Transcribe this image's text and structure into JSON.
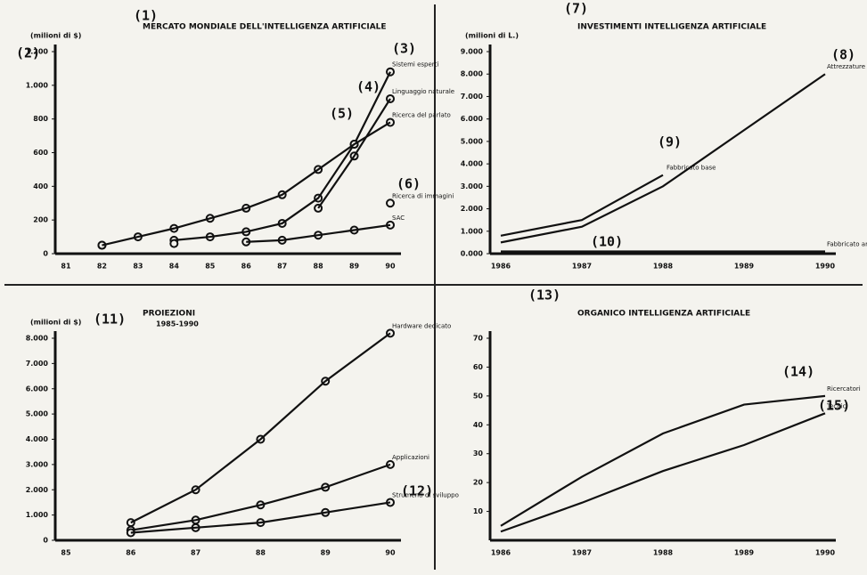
{
  "chart_data": [
    {
      "type": "line",
      "title": "MERCATO MONDIALE DELL'INTELLIGENZA ARTIFICIALE",
      "ylabel": "(milioni di $)",
      "categories": [
        "81",
        "82",
        "83",
        "84",
        "85",
        "86",
        "87",
        "88",
        "89",
        "90"
      ],
      "ylim": [
        0,
        1200
      ],
      "yticks": [
        0,
        200,
        400,
        600,
        800,
        {
          "value": 1000,
          "label": "1.000"
        },
        {
          "value": 1200,
          "label": "1.200"
        }
      ],
      "markers": true,
      "series": [
        {
          "name": "Sistemi esperti",
          "color": "#111",
          "values": [
            null,
            50,
            null,
            80,
            100,
            130,
            180,
            330,
            650,
            1080
          ]
        },
        {
          "name": "Linguaggio naturale",
          "color": "#111",
          "values": [
            null,
            null,
            null,
            null,
            null,
            null,
            null,
            270,
            580,
            920
          ]
        },
        {
          "name": "Ricerca del parlato",
          "color": "#111",
          "values": [
            null,
            50,
            100,
            150,
            210,
            270,
            350,
            500,
            650,
            780
          ]
        },
        {
          "name": "Ricerca di immagini",
          "color": "#111",
          "values": [
            null,
            null,
            null,
            null,
            null,
            null,
            null,
            null,
            null,
            300
          ]
        },
        {
          "name": "SAC",
          "color": "#111",
          "values": [
            null,
            null,
            null,
            60,
            null,
            70,
            80,
            110,
            140,
            170
          ]
        }
      ],
      "annotations": [
        "(1)",
        "(2)",
        "(3)",
        "(4)",
        "(5)",
        "(6)"
      ]
    },
    {
      "type": "line",
      "title": "INVESTIMENTI INTELLIGENZA ARTIFICIALE",
      "ylabel": "(milioni di L.)",
      "categories": [
        "1986",
        "1987",
        "1988",
        "1989",
        "1990"
      ],
      "ylim": [
        0,
        9000
      ],
      "yticks": [
        {
          "value": 0,
          "label": "0.000"
        },
        {
          "value": 1000,
          "label": "1.000"
        },
        {
          "value": 2000,
          "label": "2.000"
        },
        {
          "value": 3000,
          "label": "3.000"
        },
        {
          "value": 4000,
          "label": "4.000"
        },
        {
          "value": 5000,
          "label": "5.000"
        },
        {
          "value": 6000,
          "label": "6.000"
        },
        {
          "value": 7000,
          "label": "7.000"
        },
        {
          "value": 8000,
          "label": "8.000"
        },
        {
          "value": 9000,
          "label": "9.000"
        }
      ],
      "markers": false,
      "series": [
        {
          "name": "Attrezzature base",
          "color": "#111",
          "values": [
            500,
            1200,
            3000,
            5500,
            8000
          ]
        },
        {
          "name": "Fabbricato base",
          "color": "#111",
          "values": [
            800,
            1500,
            3500,
            null,
            null
          ]
        },
        {
          "name": "Fabbricato ammissione",
          "color": "#111",
          "values": [
            100,
            100,
            100,
            100,
            100
          ]
        }
      ],
      "annotations": [
        "(7)",
        "(8)",
        "(9)",
        "(10)"
      ]
    },
    {
      "type": "line",
      "title": "PROIEZIONI",
      "subtitle": "1985-1990",
      "ylabel": "(milioni di $)",
      "categories": [
        "85",
        "86",
        "87",
        "88",
        "89",
        "90"
      ],
      "ylim": [
        0,
        8000
      ],
      "yticks": [
        0,
        {
          "value": 1000,
          "label": "1.000"
        },
        {
          "value": 2000,
          "label": "2.000"
        },
        {
          "value": 3000,
          "label": "3.000"
        },
        {
          "value": 4000,
          "label": "4.000"
        },
        {
          "value": 5000,
          "label": "5.000"
        },
        {
          "value": 6000,
          "label": "6.000"
        },
        {
          "value": 7000,
          "label": "7.000"
        },
        {
          "value": 8000,
          "label": "8.000"
        }
      ],
      "markers": true,
      "series": [
        {
          "name": "Hardware dedicato",
          "color": "#111",
          "values": [
            null,
            700,
            2000,
            4000,
            6300,
            8200
          ]
        },
        {
          "name": "Applicazioni",
          "color": "#111",
          "values": [
            null,
            400,
            800,
            1400,
            2100,
            3000
          ]
        },
        {
          "name": "Strumenti di sviluppo",
          "color": "#111",
          "values": [
            null,
            300,
            500,
            700,
            1100,
            1500
          ]
        }
      ],
      "annotations": [
        "(11)",
        "(12)"
      ]
    },
    {
      "type": "line",
      "title": "ORGANICO INTELLIGENZA ARTIFICIALE",
      "categories": [
        "1986",
        "1987",
        "1988",
        "1989",
        "1990"
      ],
      "ylim": [
        0,
        70
      ],
      "yticks": [
        10,
        20,
        30,
        40,
        50,
        60,
        70
      ],
      "markers": false,
      "series": [
        {
          "name": "Ricercatori",
          "color": "#111",
          "values": [
            5,
            22,
            37,
            47,
            50
          ]
        },
        {
          "name": "Tecnici",
          "color": "#111",
          "values": [
            3,
            13,
            24,
            33,
            44
          ]
        }
      ],
      "annotations": [
        "(13)",
        "(14)",
        "(15)"
      ]
    }
  ]
}
